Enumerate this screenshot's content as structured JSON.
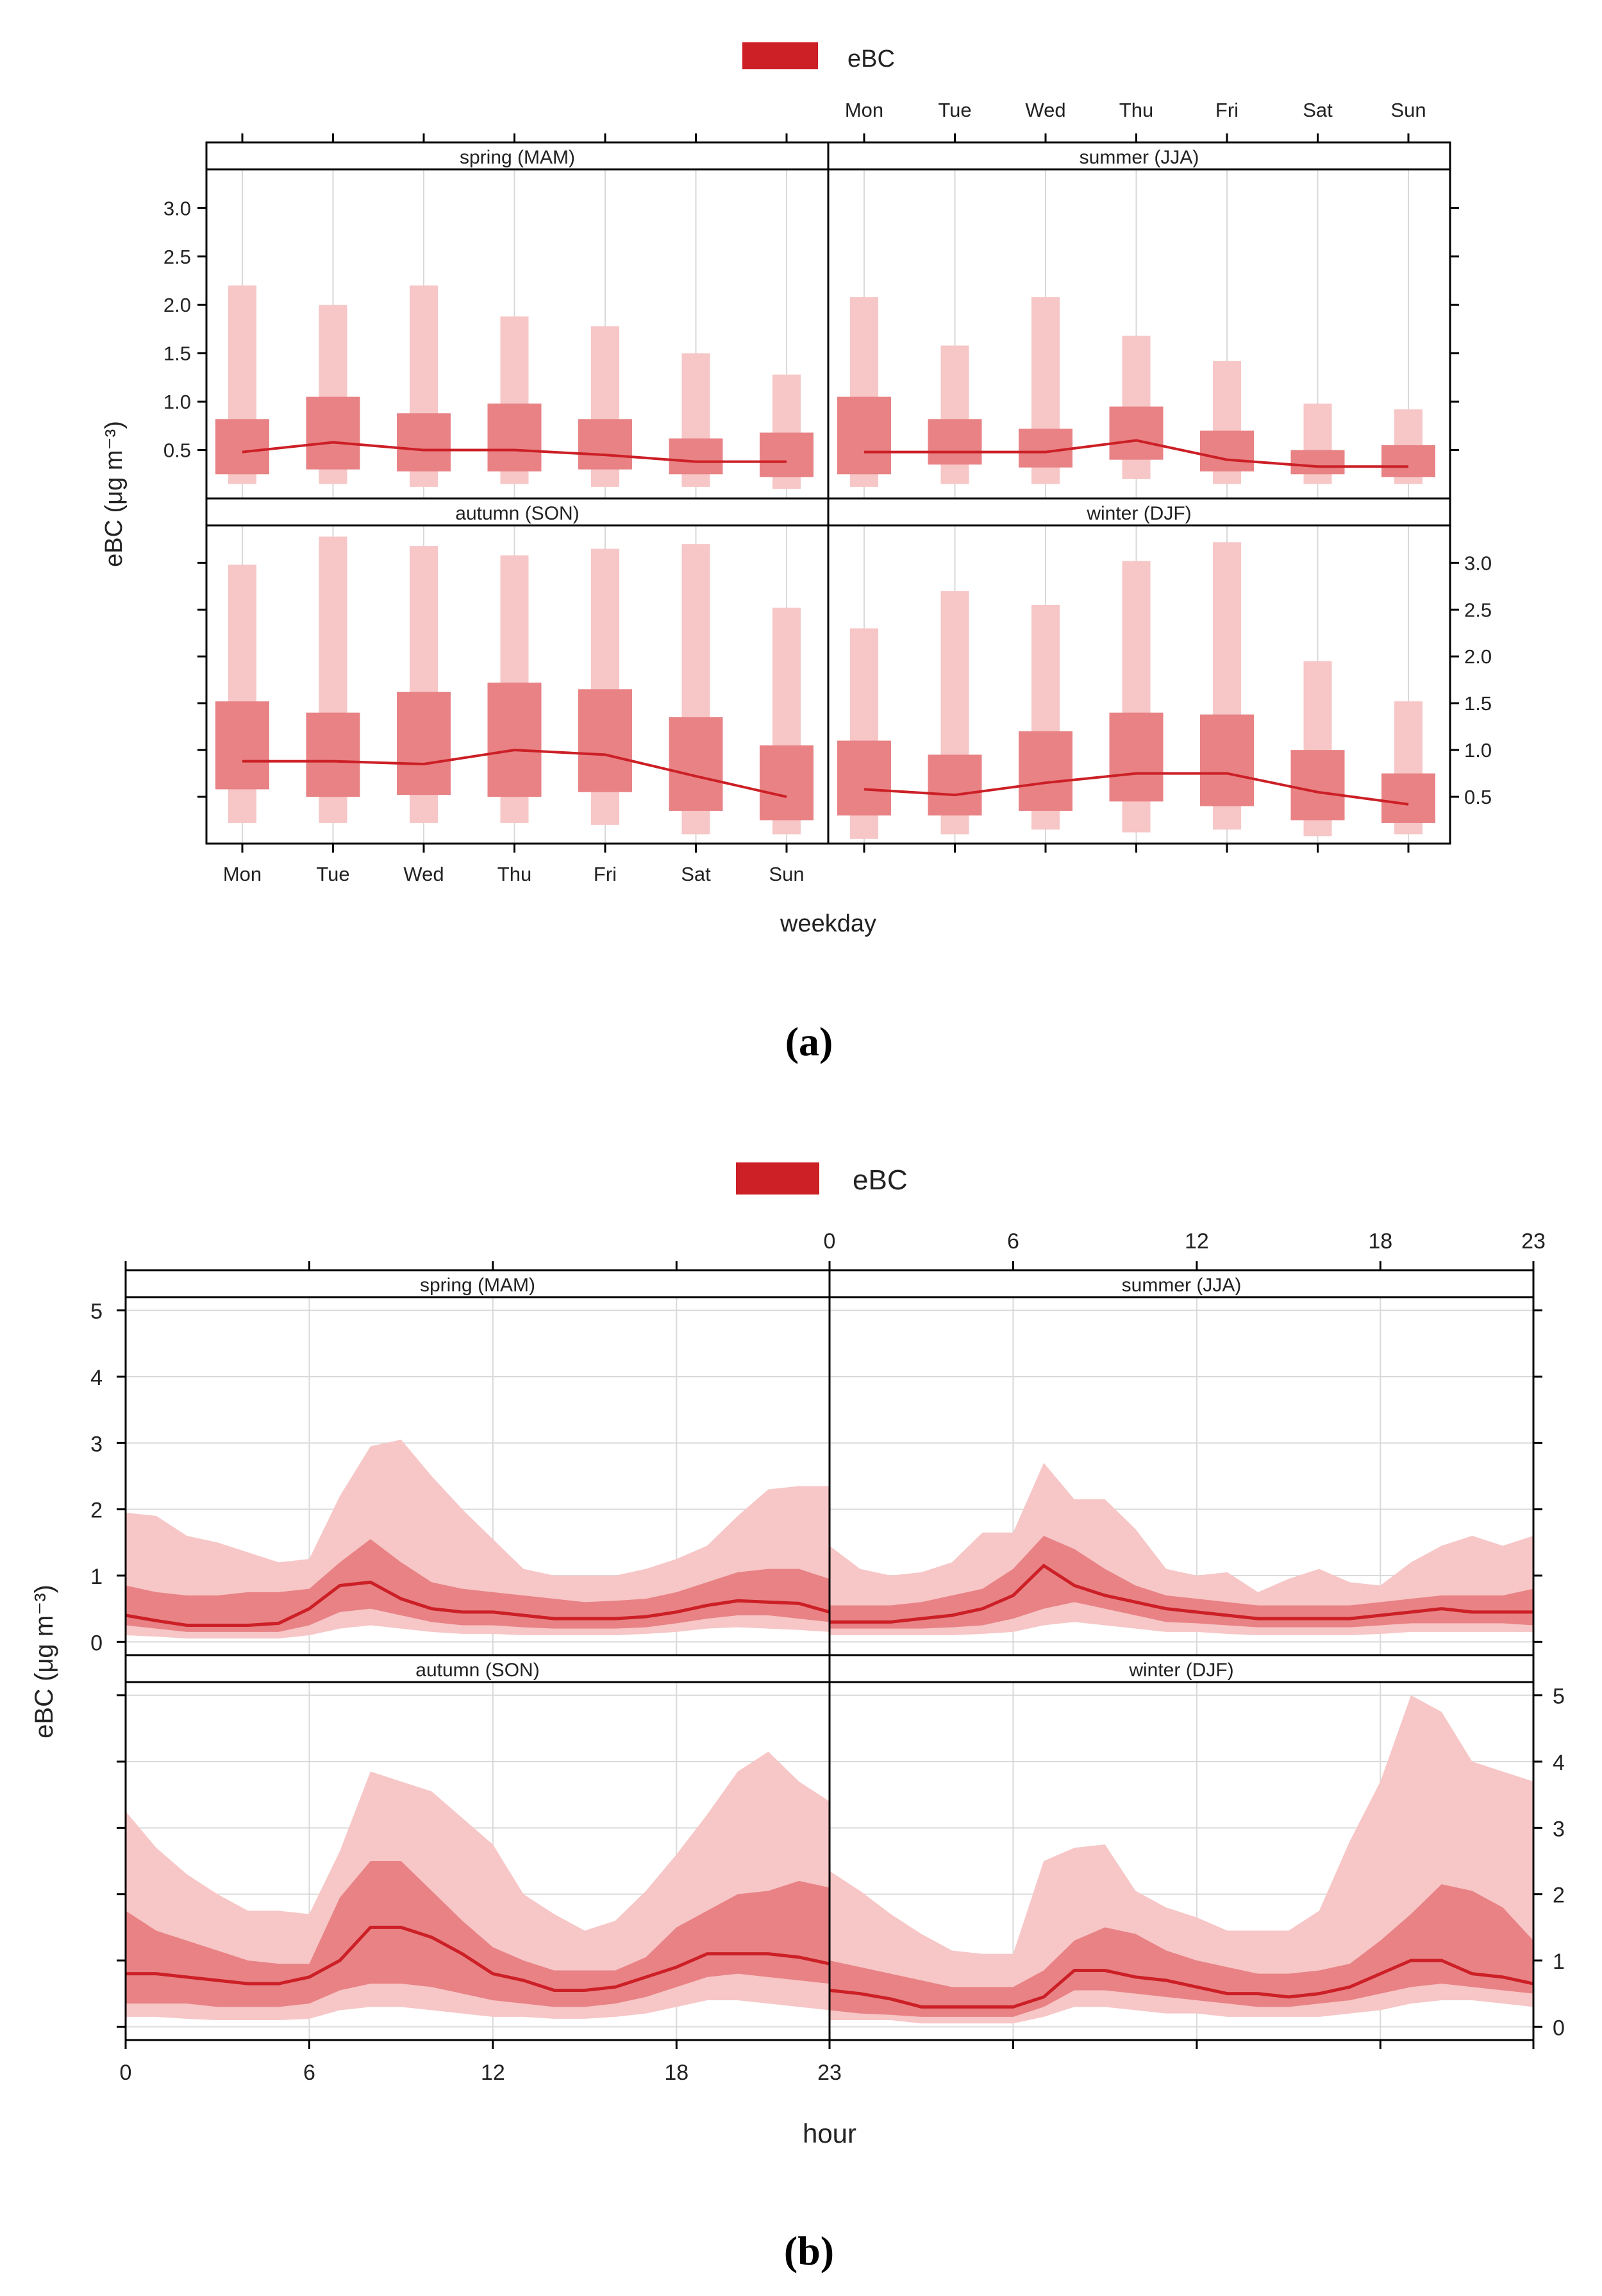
{
  "colors": {
    "ebc": "#cc1f26",
    "outer": "#f7c6c6",
    "inner": "#e88285",
    "mid": "#f0a7a9",
    "frame": "#000000",
    "grid": "#d9d9d9"
  },
  "chart_data": [
    {
      "panel_label": "(a)",
      "caption_letter": "a",
      "type": "box",
      "legend": "eBC",
      "ylabel": "eBC (μg m⁻³)",
      "xlabel": "weekday",
      "ylim": [
        0,
        3.4
      ],
      "yticks": [
        "0.5",
        "1.0",
        "1.5",
        "2.0",
        "2.5",
        "3.0"
      ],
      "categories": [
        "Mon",
        "Tue",
        "Wed",
        "Thu",
        "Fri",
        "Sat",
        "Sun"
      ],
      "facets": [
        {
          "title": "spring (MAM)",
          "outer_low": [
            0.15,
            0.15,
            0.12,
            0.15,
            0.12,
            0.12,
            0.1
          ],
          "outer_high": [
            2.2,
            2.0,
            2.2,
            1.88,
            1.78,
            1.5,
            1.28
          ],
          "inner_low": [
            0.25,
            0.3,
            0.28,
            0.28,
            0.3,
            0.25,
            0.22
          ],
          "inner_high": [
            0.82,
            1.05,
            0.88,
            0.98,
            0.82,
            0.62,
            0.68
          ],
          "mean": [
            0.48,
            0.58,
            0.5,
            0.5,
            0.45,
            0.38,
            0.38
          ]
        },
        {
          "title": "summer (JJA)",
          "outer_low": [
            0.12,
            0.15,
            0.15,
            0.2,
            0.15,
            0.15,
            0.15
          ],
          "outer_high": [
            2.08,
            1.58,
            2.08,
            1.68,
            1.42,
            0.98,
            0.92
          ],
          "inner_low": [
            0.25,
            0.35,
            0.32,
            0.4,
            0.28,
            0.25,
            0.22
          ],
          "inner_high": [
            1.05,
            0.82,
            0.72,
            0.95,
            0.7,
            0.5,
            0.55
          ],
          "mean": [
            0.48,
            0.48,
            0.48,
            0.6,
            0.4,
            0.33,
            0.33
          ]
        },
        {
          "title": "autumn (SON)",
          "outer_low": [
            0.22,
            0.22,
            0.22,
            0.22,
            0.2,
            0.1,
            0.1
          ],
          "outer_high": [
            2.98,
            3.28,
            3.18,
            3.08,
            3.15,
            3.2,
            2.52
          ],
          "inner_low": [
            0.58,
            0.5,
            0.52,
            0.5,
            0.55,
            0.35,
            0.25
          ],
          "inner_high": [
            1.52,
            1.4,
            1.62,
            1.72,
            1.65,
            1.35,
            1.05
          ],
          "mean": [
            0.88,
            0.88,
            0.85,
            1.0,
            0.95,
            0.72,
            0.5
          ]
        },
        {
          "title": "winter (DJF)",
          "outer_low": [
            0.05,
            0.1,
            0.15,
            0.12,
            0.15,
            0.08,
            0.1
          ],
          "outer_high": [
            2.3,
            2.7,
            2.55,
            3.02,
            3.22,
            1.95,
            1.52
          ],
          "inner_low": [
            0.3,
            0.3,
            0.35,
            0.45,
            0.4,
            0.25,
            0.22
          ],
          "inner_high": [
            1.1,
            0.95,
            1.2,
            1.4,
            1.38,
            1.0,
            0.75
          ],
          "mean": [
            0.58,
            0.52,
            0.65,
            0.75,
            0.75,
            0.55,
            0.42
          ]
        }
      ]
    },
    {
      "panel_label": "(b)",
      "caption_letter": "b",
      "type": "area",
      "legend": "eBC",
      "ylabel": "eBC (μg m⁻³)",
      "xlabel": "hour",
      "ylim": [
        -0.2,
        5.2
      ],
      "yticks": [
        "0",
        "1",
        "2",
        "3",
        "4",
        "5"
      ],
      "xticks": [
        0,
        6,
        12,
        18,
        23
      ],
      "x": [
        0,
        1,
        2,
        3,
        4,
        5,
        6,
        7,
        8,
        9,
        10,
        11,
        12,
        13,
        14,
        15,
        16,
        17,
        18,
        19,
        20,
        21,
        22,
        23
      ],
      "facets": [
        {
          "title": "spring (MAM)",
          "p05": [
            0.1,
            0.08,
            0.05,
            0.05,
            0.05,
            0.05,
            0.1,
            0.2,
            0.25,
            0.2,
            0.15,
            0.12,
            0.12,
            0.1,
            0.1,
            0.1,
            0.1,
            0.12,
            0.15,
            0.2,
            0.22,
            0.2,
            0.18,
            0.15
          ],
          "p25": [
            0.25,
            0.2,
            0.15,
            0.15,
            0.15,
            0.15,
            0.25,
            0.45,
            0.5,
            0.4,
            0.3,
            0.25,
            0.25,
            0.22,
            0.2,
            0.2,
            0.2,
            0.22,
            0.28,
            0.35,
            0.4,
            0.4,
            0.35,
            0.3
          ],
          "mean": [
            0.4,
            0.32,
            0.25,
            0.25,
            0.25,
            0.28,
            0.5,
            0.85,
            0.9,
            0.65,
            0.5,
            0.45,
            0.45,
            0.4,
            0.35,
            0.35,
            0.35,
            0.38,
            0.45,
            0.55,
            0.62,
            0.6,
            0.58,
            0.45
          ],
          "p75": [
            0.85,
            0.75,
            0.7,
            0.7,
            0.75,
            0.75,
            0.8,
            1.2,
            1.55,
            1.2,
            0.9,
            0.8,
            0.75,
            0.7,
            0.65,
            0.6,
            0.62,
            0.65,
            0.75,
            0.9,
            1.05,
            1.1,
            1.1,
            0.95
          ],
          "p95": [
            1.95,
            1.9,
            1.6,
            1.5,
            1.35,
            1.2,
            1.25,
            2.2,
            2.95,
            3.05,
            2.5,
            2.0,
            1.55,
            1.1,
            1.0,
            1.0,
            1.0,
            1.1,
            1.25,
            1.45,
            1.9,
            2.3,
            2.35,
            2.35
          ]
        },
        {
          "title": "summer (JJA)",
          "p05": [
            0.1,
            0.1,
            0.1,
            0.1,
            0.1,
            0.12,
            0.15,
            0.25,
            0.3,
            0.25,
            0.2,
            0.15,
            0.15,
            0.12,
            0.1,
            0.1,
            0.1,
            0.1,
            0.12,
            0.15,
            0.15,
            0.15,
            0.15,
            0.15
          ],
          "p25": [
            0.2,
            0.2,
            0.2,
            0.2,
            0.22,
            0.25,
            0.35,
            0.5,
            0.6,
            0.5,
            0.4,
            0.3,
            0.28,
            0.25,
            0.22,
            0.22,
            0.22,
            0.22,
            0.25,
            0.28,
            0.28,
            0.28,
            0.28,
            0.25
          ],
          "mean": [
            0.3,
            0.3,
            0.3,
            0.35,
            0.4,
            0.5,
            0.7,
            1.15,
            0.85,
            0.7,
            0.6,
            0.5,
            0.45,
            0.4,
            0.35,
            0.35,
            0.35,
            0.35,
            0.4,
            0.45,
            0.5,
            0.45,
            0.45,
            0.45
          ],
          "p75": [
            0.55,
            0.55,
            0.55,
            0.6,
            0.7,
            0.8,
            1.1,
            1.6,
            1.4,
            1.1,
            0.85,
            0.7,
            0.65,
            0.6,
            0.55,
            0.55,
            0.55,
            0.55,
            0.6,
            0.65,
            0.7,
            0.7,
            0.7,
            0.8
          ],
          "p95": [
            1.45,
            1.1,
            1.0,
            1.05,
            1.2,
            1.65,
            1.65,
            2.7,
            2.15,
            2.15,
            1.7,
            1.1,
            1.0,
            1.05,
            0.75,
            0.95,
            1.1,
            0.9,
            0.85,
            1.2,
            1.45,
            1.6,
            1.45,
            1.6
          ]
        },
        {
          "title": "autumn (SON)",
          "p05": [
            0.15,
            0.15,
            0.12,
            0.1,
            0.1,
            0.1,
            0.12,
            0.25,
            0.3,
            0.3,
            0.25,
            0.2,
            0.15,
            0.15,
            0.12,
            0.12,
            0.15,
            0.2,
            0.3,
            0.4,
            0.4,
            0.35,
            0.3,
            0.25
          ],
          "p25": [
            0.35,
            0.35,
            0.35,
            0.3,
            0.3,
            0.3,
            0.35,
            0.55,
            0.65,
            0.65,
            0.6,
            0.5,
            0.4,
            0.35,
            0.3,
            0.3,
            0.35,
            0.45,
            0.6,
            0.75,
            0.8,
            0.75,
            0.7,
            0.65
          ],
          "mean": [
            0.8,
            0.8,
            0.75,
            0.7,
            0.65,
            0.65,
            0.75,
            1.0,
            1.5,
            1.5,
            1.35,
            1.1,
            0.8,
            0.7,
            0.55,
            0.55,
            0.6,
            0.75,
            0.9,
            1.1,
            1.1,
            1.1,
            1.05,
            0.95
          ],
          "p75": [
            1.75,
            1.45,
            1.3,
            1.15,
            1.0,
            0.95,
            0.95,
            1.95,
            2.5,
            2.5,
            2.05,
            1.6,
            1.2,
            1.0,
            0.85,
            0.85,
            0.85,
            1.05,
            1.5,
            1.75,
            2.0,
            2.05,
            2.2,
            2.1
          ],
          "p95": [
            3.25,
            2.7,
            2.3,
            2.0,
            1.75,
            1.75,
            1.7,
            2.65,
            3.85,
            3.7,
            3.55,
            3.15,
            2.75,
            2.0,
            1.7,
            1.45,
            1.6,
            2.05,
            2.6,
            3.2,
            3.85,
            4.15,
            3.7,
            3.4
          ]
        },
        {
          "title": "winter (DJF)",
          "p05": [
            0.1,
            0.1,
            0.1,
            0.05,
            0.05,
            0.05,
            0.05,
            0.15,
            0.3,
            0.3,
            0.25,
            0.2,
            0.2,
            0.15,
            0.15,
            0.15,
            0.15,
            0.2,
            0.25,
            0.35,
            0.4,
            0.4,
            0.35,
            0.3
          ],
          "p25": [
            0.25,
            0.2,
            0.18,
            0.15,
            0.15,
            0.15,
            0.15,
            0.3,
            0.55,
            0.55,
            0.5,
            0.45,
            0.4,
            0.35,
            0.3,
            0.3,
            0.35,
            0.4,
            0.5,
            0.6,
            0.65,
            0.6,
            0.55,
            0.5
          ],
          "mean": [
            0.55,
            0.5,
            0.42,
            0.3,
            0.3,
            0.3,
            0.3,
            0.45,
            0.85,
            0.85,
            0.75,
            0.7,
            0.6,
            0.5,
            0.5,
            0.45,
            0.5,
            0.6,
            0.8,
            1.0,
            1.0,
            0.8,
            0.75,
            0.65
          ],
          "p75": [
            1.0,
            0.9,
            0.8,
            0.7,
            0.6,
            0.6,
            0.6,
            0.85,
            1.3,
            1.5,
            1.4,
            1.15,
            1.0,
            0.9,
            0.8,
            0.8,
            0.85,
            0.95,
            1.3,
            1.7,
            2.15,
            2.05,
            1.8,
            1.3
          ],
          "p95": [
            2.35,
            2.05,
            1.7,
            1.4,
            1.15,
            1.1,
            1.1,
            2.5,
            2.7,
            2.75,
            2.05,
            1.8,
            1.65,
            1.45,
            1.45,
            1.45,
            1.75,
            2.8,
            3.7,
            5.0,
            4.75,
            4.0,
            3.85,
            3.7
          ]
        }
      ]
    }
  ]
}
